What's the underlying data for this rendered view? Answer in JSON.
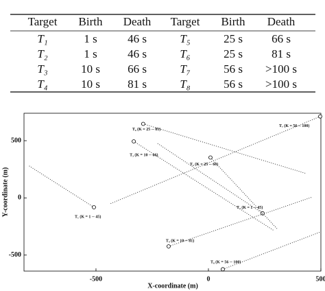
{
  "table": {
    "header": [
      "Target",
      "Birth",
      "Death",
      "Target",
      "Birth",
      "Death"
    ],
    "rows": [
      [
        "T₁",
        "1 s",
        "46 s",
        "T₅",
        "25 s",
        "66 s"
      ],
      [
        "T₂",
        "1 s",
        "46 s",
        "T₆",
        "25 s",
        "81 s"
      ],
      [
        "T₃",
        "10 s",
        "66 s",
        "T₇",
        "56 s",
        ">100 s"
      ],
      [
        "T₄",
        "10 s",
        "81 s",
        "T₈",
        "56 s",
        ">100 s"
      ]
    ]
  },
  "chart_data": {
    "type": "trajectory",
    "x_label": "X-coordinate (m)",
    "y_label": "Y-coordinate (m)",
    "xlim": [
      -820,
      500
    ],
    "ylim": [
      -640,
      740
    ],
    "xticks": [
      -500,
      0,
      500
    ],
    "yticks": [
      -500,
      0,
      500
    ],
    "tracks": [
      {
        "label": "T₁ (K = 1 -- 45)",
        "start": [
          -509,
          -82
        ],
        "end": [
          -799,
          282
        ]
      },
      {
        "label": "T₂ (K = 1 -- 45)",
        "start": [
          241,
          -135
        ],
        "end": [
          -226,
          476
        ]
      },
      {
        "label": "T₃ (K = 10 -- 66)",
        "start": [
          -332,
          494
        ],
        "end": [
          293,
          -288
        ]
      },
      {
        "label": "T₄ (K = 10 -- 81)",
        "start": [
          -177,
          -424
        ],
        "end": [
          460,
          6
        ]
      },
      {
        "label": "T₅ (K = 25 -- 66)",
        "start": [
          9,
          353
        ],
        "end": [
          308,
          -276
        ]
      },
      {
        "label": "T₆ (K = 25 -- 81)",
        "start": [
          -290,
          647
        ],
        "end": [
          436,
          212
        ]
      },
      {
        "label": "T₇ (K = 56 -- 100)",
        "start": [
          497,
          712
        ],
        "end": [
          -439,
          -53
        ]
      },
      {
        "label": "T₈ (K = 56 -- 100)",
        "start": [
          64,
          -624
        ],
        "end": [
          495,
          -300
        ]
      }
    ]
  }
}
